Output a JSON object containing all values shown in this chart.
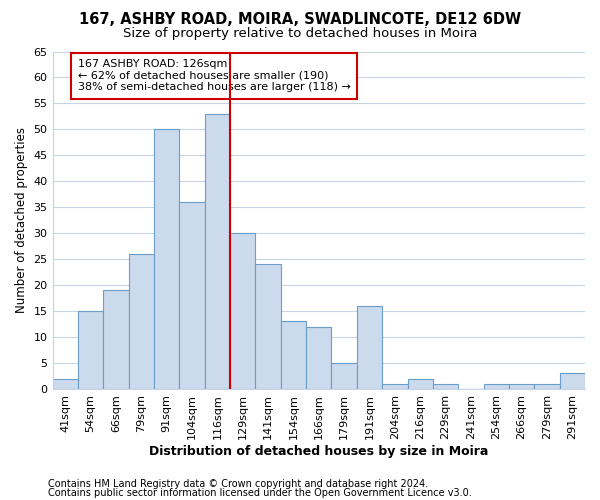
{
  "title1": "167, ASHBY ROAD, MOIRA, SWADLINCOTE, DE12 6DW",
  "title2": "Size of property relative to detached houses in Moira",
  "xlabel": "Distribution of detached houses by size in Moira",
  "ylabel": "Number of detached properties",
  "categories": [
    "41sqm",
    "54sqm",
    "66sqm",
    "79sqm",
    "91sqm",
    "104sqm",
    "116sqm",
    "129sqm",
    "141sqm",
    "154sqm",
    "166sqm",
    "179sqm",
    "191sqm",
    "204sqm",
    "216sqm",
    "229sqm",
    "241sqm",
    "254sqm",
    "266sqm",
    "279sqm",
    "291sqm"
  ],
  "values": [
    2,
    15,
    19,
    26,
    50,
    36,
    53,
    30,
    24,
    13,
    12,
    5,
    16,
    1,
    2,
    1,
    0,
    1,
    1,
    1,
    3
  ],
  "bar_color": "#ccdaed",
  "bar_edge_color": "#6b9ec8",
  "vline_color": "#cc0000",
  "vline_x_idx": 6,
  "annotation_text": "167 ASHBY ROAD: 126sqm\n← 62% of detached houses are smaller (190)\n38% of semi-detached houses are larger (118) →",
  "annotation_box_color": "#ffffff",
  "annotation_box_edge": "#cc0000",
  "ylim": [
    0,
    65
  ],
  "yticks": [
    0,
    5,
    10,
    15,
    20,
    25,
    30,
    35,
    40,
    45,
    50,
    55,
    60,
    65
  ],
  "grid_color": "#c8d4e3",
  "footer1": "Contains HM Land Registry data © Crown copyright and database right 2024.",
  "footer2": "Contains public sector information licensed under the Open Government Licence v3.0.",
  "bg_color": "#ffffff",
  "plot_bg_color": "#ffffff",
  "title1_fontsize": 10.5,
  "title2_fontsize": 9.5,
  "xlabel_fontsize": 9,
  "ylabel_fontsize": 8.5,
  "tick_fontsize": 8,
  "annotation_fontsize": 8,
  "footer_fontsize": 7
}
